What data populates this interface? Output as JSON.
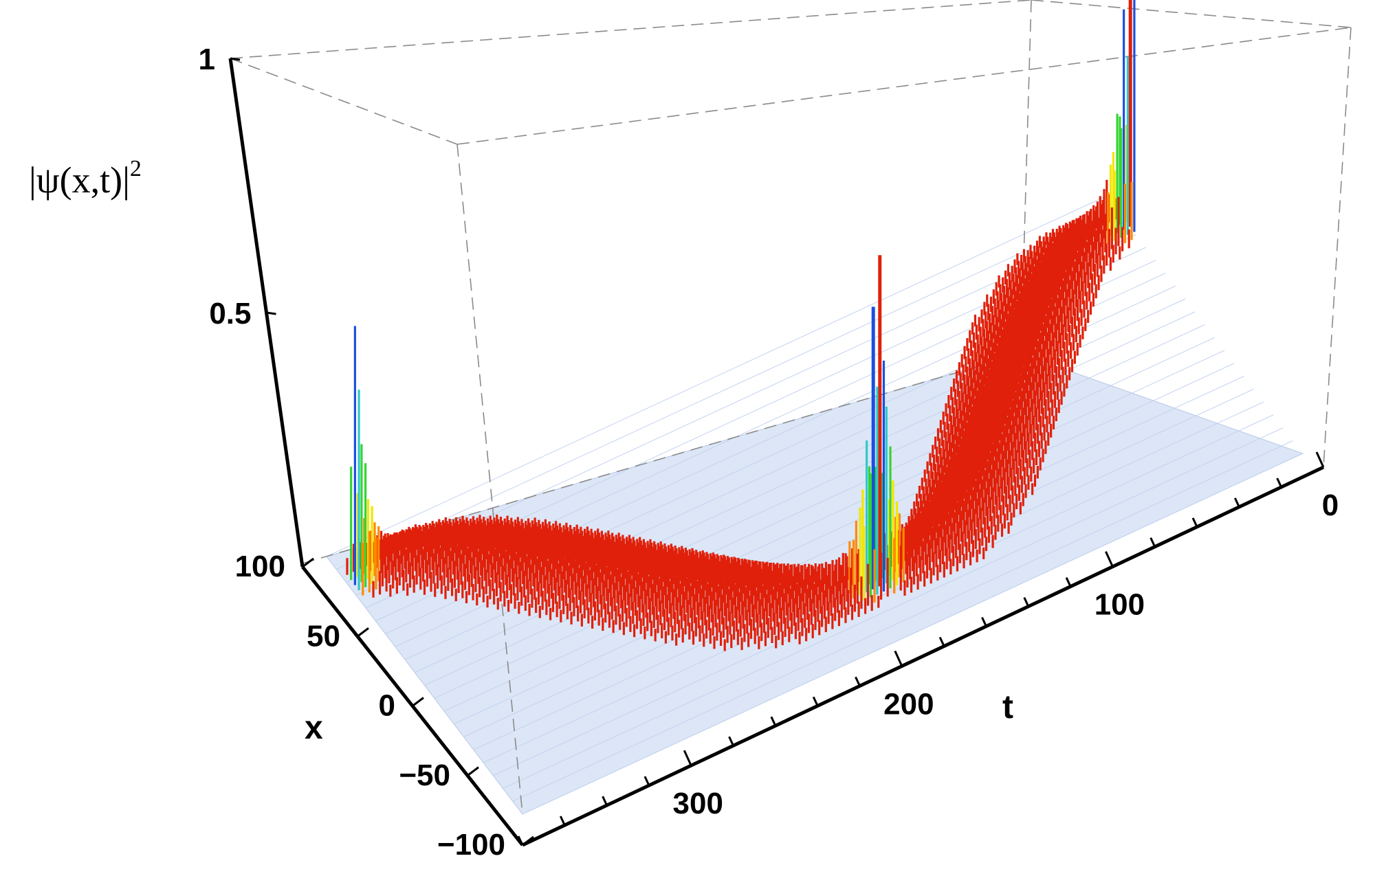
{
  "chart_data": {
    "type": "3d-bar",
    "zlabel_text": "|ψ(x,t)|",
    "zlabel_sup": "2",
    "xlabel": "x",
    "tlabel": "t",
    "x_range": [
      -100,
      100
    ],
    "t_range": [
      0,
      380
    ],
    "z_range": [
      0,
      1
    ],
    "x_ticks": [
      "100",
      "50",
      "0",
      "−50",
      "−100"
    ],
    "x_tick_values": [
      100,
      50,
      0,
      -50,
      -100
    ],
    "t_ticks": [
      "0",
      "100",
      "200",
      "300"
    ],
    "t_tick_values": [
      0,
      100,
      200,
      300
    ],
    "z_ticks": [
      "1",
      "0.5"
    ],
    "z_tick_values": [
      1,
      0.5
    ],
    "grid": false,
    "legend": "none",
    "wavepacket": {
      "description_values": {
        "turning_times": [
          0,
          190,
          380
        ],
        "center_turning_x": [
          75,
          -65,
          75
        ],
        "peak_heights_at_turning": [
          1.0,
          0.82,
          0.9
        ],
        "baseline_height": 0.08
      }
    },
    "colors": {
      "floor": "#c9d9f2",
      "low": "#e0200a",
      "mid_low": "#ff8a00",
      "mid": "#f2e600",
      "mid_high": "#33d433",
      "high": "#1a4fe0",
      "peak": "#cc22cc"
    }
  }
}
